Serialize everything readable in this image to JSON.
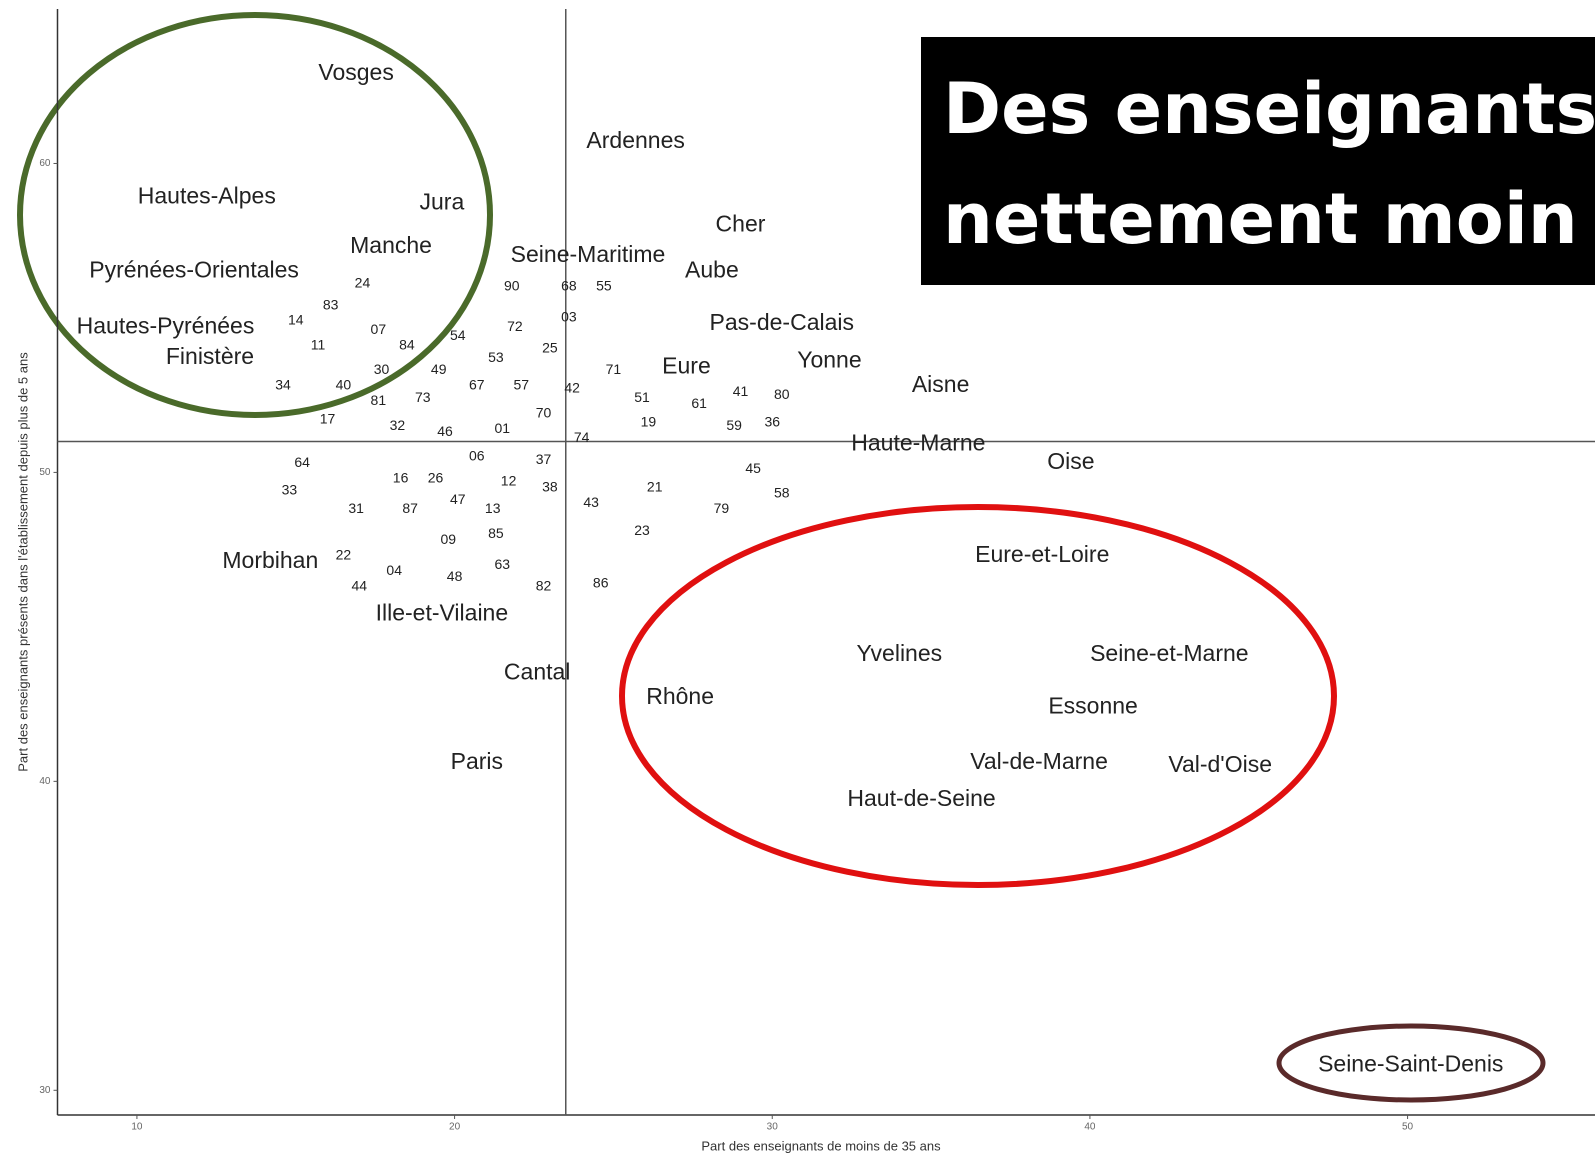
{
  "chart_data": {
    "type": "scatter",
    "title": [
      "Des enseignants",
      "nettement moin"
    ],
    "x_label": "Part des enseignants de moins de 35 ans",
    "y_label": "Part des enseignants présents dans l'établissement depuis plus de 5 ans",
    "xlim": [
      7.5,
      55.9
    ],
    "ylim": [
      29.2,
      65
    ],
    "xticks": [
      10,
      20,
      30,
      40,
      50
    ],
    "yticks": [
      30,
      40,
      50,
      60
    ],
    "vlines": [
      23.5
    ],
    "hlines": [
      51.0
    ],
    "series": [
      {
        "labels": [
          "Vosges",
          "Ardennes",
          "Hautes-Alpes",
          "Jura",
          "Cher",
          "Manche",
          "Seine-Maritime",
          "Pyrénées-Orientales",
          "Aube",
          "Pas-de-Calais",
          "Hautes-Pyrénées",
          "Finistère",
          "Yonne",
          "Eure",
          "Aisne",
          "Haute-Marne",
          "Oise",
          "Eure-et-Loire",
          "Morbihan",
          "Ille-et-Vilaine",
          "Yvelines",
          "Seine-et-Marne",
          "Cantal",
          "Rhône",
          "Essonne",
          "Val-de-Marne",
          "Val-d'Oise",
          "Paris",
          "Haut-de-Seine",
          "Seine-Saint-Denis"
        ],
        "x": [
          16.9,
          25.7,
          12.2,
          19.6,
          29.0,
          18.0,
          24.2,
          11.8,
          28.1,
          30.3,
          10.9,
          12.3,
          31.8,
          27.3,
          35.3,
          34.6,
          39.4,
          38.5,
          14.2,
          19.6,
          34.0,
          42.5,
          22.6,
          27.1,
          40.1,
          38.4,
          44.1,
          20.7,
          34.7,
          50.1
        ],
        "values": [
          62.9,
          60.7,
          58.9,
          58.7,
          58.0,
          57.3,
          57.0,
          56.5,
          56.5,
          54.8,
          54.7,
          53.7,
          53.6,
          53.4,
          52.8,
          50.9,
          50.3,
          47.3,
          47.1,
          45.4,
          44.1,
          44.1,
          43.5,
          42.7,
          42.4,
          40.6,
          40.5,
          40.6,
          39.4,
          30.8
        ]
      },
      {
        "labels": [
          "24",
          "90",
          "68",
          "55",
          "83",
          "03",
          "14",
          "72",
          "07",
          "54",
          "11",
          "84",
          "25",
          "53",
          "71",
          "30",
          "49",
          "34",
          "40",
          "67",
          "57",
          "42",
          "81",
          "73",
          "41",
          "80",
          "51",
          "61",
          "70",
          "17",
          "32",
          "19",
          "59",
          "36",
          "46",
          "01",
          "74",
          "06",
          "37",
          "64",
          "45",
          "16",
          "26",
          "12",
          "33",
          "38",
          "21",
          "58",
          "47",
          "43",
          "31",
          "87",
          "13",
          "79",
          "85",
          "23",
          "09",
          "22",
          "63",
          "04",
          "48",
          "86",
          "44",
          "82"
        ],
        "x": [
          17.1,
          21.8,
          23.6,
          24.7,
          16.1,
          23.6,
          15.0,
          21.9,
          17.6,
          20.1,
          15.7,
          18.5,
          23.0,
          21.3,
          25.0,
          17.7,
          19.5,
          14.6,
          16.5,
          20.7,
          22.1,
          23.7,
          17.6,
          19.0,
          29.0,
          30.3,
          25.9,
          27.7,
          22.8,
          16.0,
          18.2,
          26.1,
          28.8,
          30.0,
          19.7,
          21.5,
          24.0,
          20.7,
          22.8,
          15.2,
          29.4,
          18.3,
          19.4,
          21.7,
          14.8,
          23.0,
          26.3,
          30.3,
          20.1,
          24.3,
          16.9,
          18.6,
          21.2,
          28.4,
          21.3,
          25.9,
          19.8,
          16.5,
          21.5,
          18.1,
          20.0,
          24.6,
          17.0,
          22.8
        ],
        "values": [
          56.1,
          56.0,
          56.0,
          56.0,
          55.4,
          55.0,
          54.9,
          54.7,
          54.6,
          54.4,
          54.1,
          54.1,
          54.0,
          53.7,
          53.3,
          53.3,
          53.3,
          52.8,
          52.8,
          52.8,
          52.8,
          52.7,
          52.3,
          52.4,
          52.6,
          52.5,
          52.4,
          52.2,
          51.9,
          51.7,
          51.5,
          51.6,
          51.5,
          51.6,
          51.3,
          51.4,
          51.1,
          50.5,
          50.4,
          50.3,
          50.1,
          49.8,
          49.8,
          49.7,
          49.4,
          49.5,
          49.5,
          49.3,
          49.1,
          49.0,
          48.8,
          48.8,
          48.8,
          48.8,
          48.0,
          48.1,
          47.8,
          47.3,
          47.0,
          46.8,
          46.6,
          46.4,
          46.3,
          46.3
        ]
      }
    ]
  }
}
